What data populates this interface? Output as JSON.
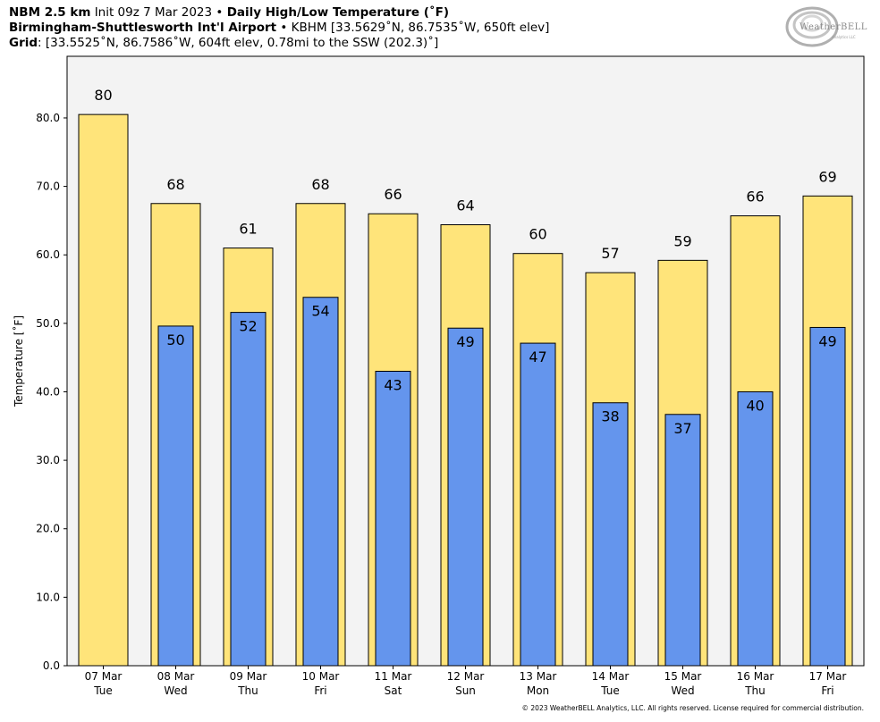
{
  "header": {
    "line1_bold": "NBM 2.5 km",
    "line1_init": "Init 09z 7 Mar 2023",
    "line1_sep": "•",
    "line1_title": "Daily High/Low Temperature (˚F)",
    "line2_station": "Birmingham-Shuttlesworth Int'l Airport",
    "line2_sep": "•",
    "line2_info": "KBHM [33.5629˚N, 86.7535˚W, 650ft elev]",
    "line3_label": "Grid",
    "line3_info": ": [33.5525˚N, 86.7586˚W, 604ft elev, 0.78mi to the SSW (202.3)˚]"
  },
  "logo": {
    "text": "WeatherBELL",
    "sub": "Analytics LLC"
  },
  "footer": {
    "text": "© 2023 WeatherBELL Analytics, LLC. All rights reserved. License required for commercial distribution."
  },
  "colors": {
    "high": "#FFE47A",
    "low": "#6495ED",
    "plot_bg": "#F3F3F3",
    "outline": "#000000"
  },
  "chart_data": {
    "type": "bar",
    "title": "Daily High/Low Temperature (˚F)",
    "ylabel": "Temperature [˚F]",
    "xlabel": "",
    "ylim": [
      0,
      89
    ],
    "yticks": [
      "0.0",
      "10.0",
      "20.0",
      "30.0",
      "40.0",
      "50.0",
      "60.0",
      "70.0",
      "80.0"
    ],
    "grid": false,
    "categories": [
      [
        "07 Mar",
        "Tue"
      ],
      [
        "08 Mar",
        "Wed"
      ],
      [
        "09 Mar",
        "Thu"
      ],
      [
        "10 Mar",
        "Fri"
      ],
      [
        "11 Mar",
        "Sat"
      ],
      [
        "12 Mar",
        "Sun"
      ],
      [
        "13 Mar",
        "Mon"
      ],
      [
        "14 Mar",
        "Tue"
      ],
      [
        "15 Mar",
        "Wed"
      ],
      [
        "16 Mar",
        "Thu"
      ],
      [
        "17 Mar",
        "Fri"
      ]
    ],
    "series": [
      {
        "key": "high",
        "values": [
          80.5,
          67.5,
          61,
          67.5,
          66,
          64.4,
          60.2,
          57.4,
          59.2,
          65.7,
          68.6
        ],
        "labels": [
          "80",
          "68",
          "61",
          "68",
          "66",
          "64",
          "60",
          "57",
          "59",
          "66",
          "69"
        ]
      },
      {
        "key": "low",
        "values": [
          null,
          49.6,
          51.6,
          53.8,
          43,
          49.3,
          47.1,
          38.4,
          36.7,
          40,
          49.4
        ],
        "labels": [
          "",
          "50",
          "52",
          "54",
          "43",
          "49",
          "47",
          "38",
          "37",
          "40",
          "49"
        ]
      }
    ]
  }
}
